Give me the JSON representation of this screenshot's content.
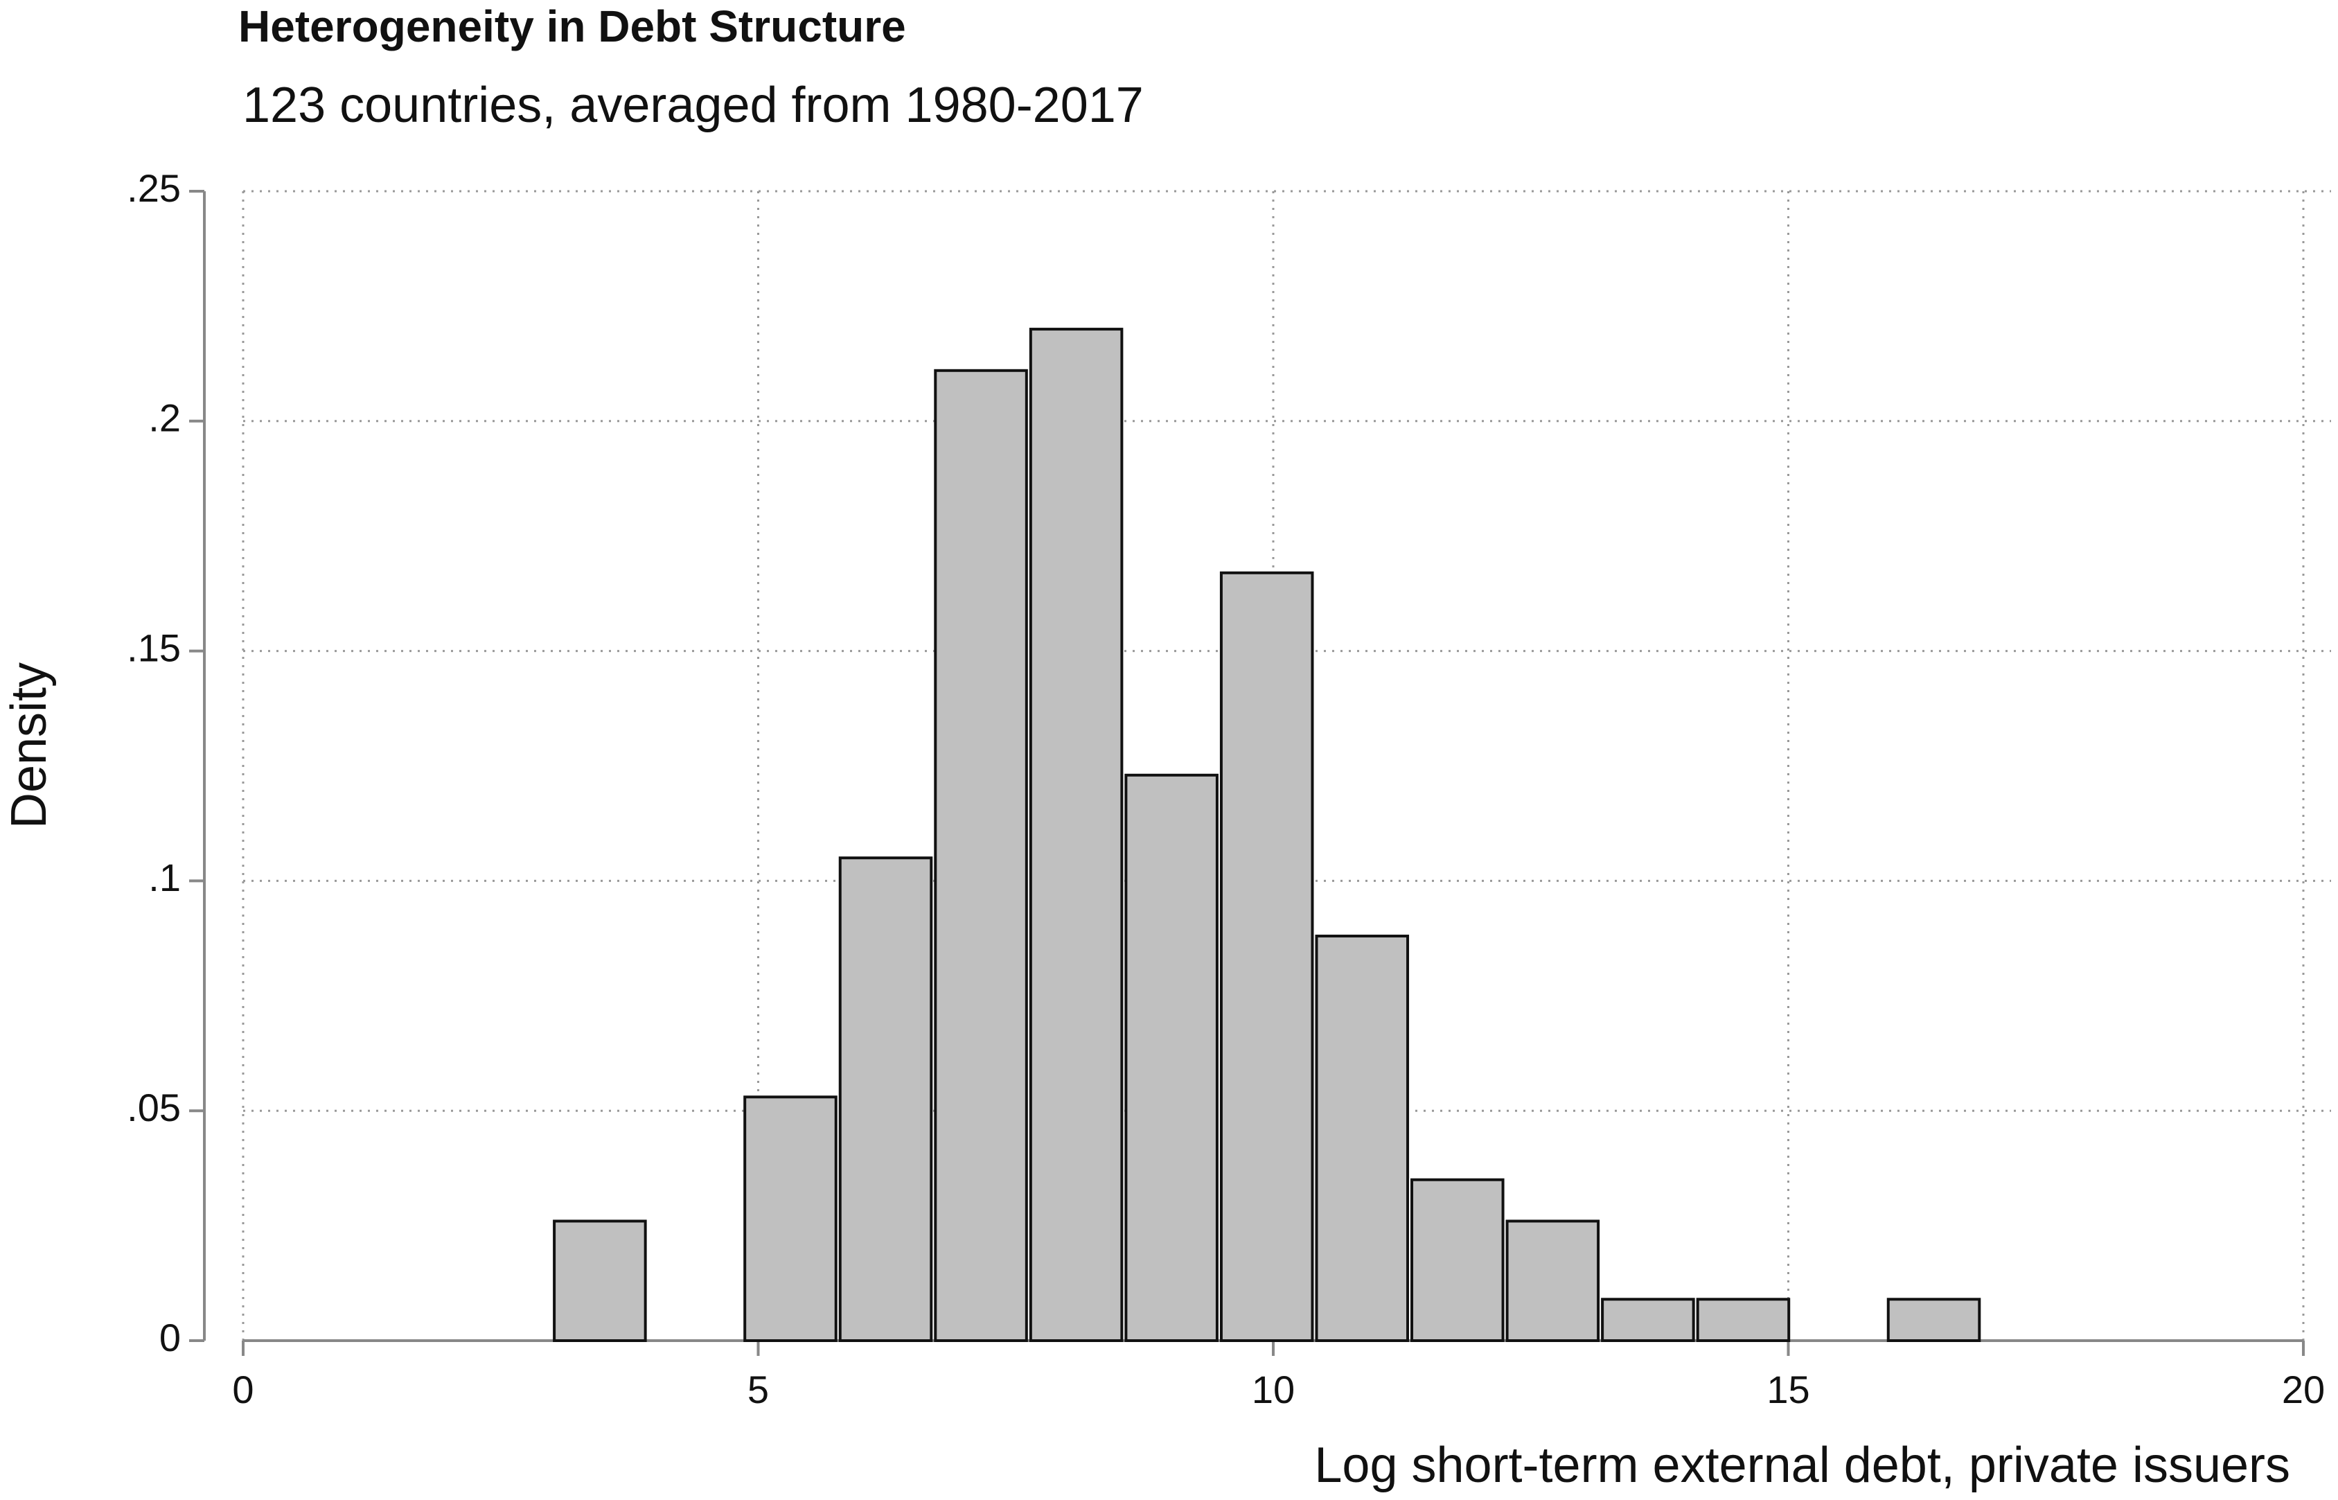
{
  "chart_data": {
    "type": "histogram",
    "title": "Heterogeneity in Debt Structure",
    "subtitle": "123 countries, averaged from 1980-2017",
    "x_label": "Log short-term external debt, private issuers",
    "y_label": "Density",
    "bins": [
      3.0,
      3.925,
      4.85,
      5.775,
      6.7,
      7.625,
      8.55,
      9.475,
      10.4,
      11.325,
      12.25,
      13.175,
      14.1,
      15.025,
      15.95,
      16.875
    ],
    "values": [
      0.026,
      0,
      0.053,
      0.105,
      0.211,
      0.22,
      0.123,
      0.167,
      0.088,
      0.035,
      0.026,
      0.009,
      0.009,
      0,
      0.009
    ],
    "color": "#c0c0c0",
    "xlim": [
      0,
      20
    ],
    "xticks": [
      0,
      5,
      10,
      15,
      20
    ],
    "ylim": [
      0,
      0.25
    ],
    "yticks": [
      0,
      {
        "value": 0.05,
        "label": ".05"
      },
      {
        "value": 0.1,
        "label": ".1"
      },
      {
        "value": 0.15,
        "label": ".15"
      },
      {
        "value": 0.2,
        "label": ".2"
      },
      {
        "value": 0.25,
        "label": ".25"
      }
    ],
    "grid": true
  }
}
